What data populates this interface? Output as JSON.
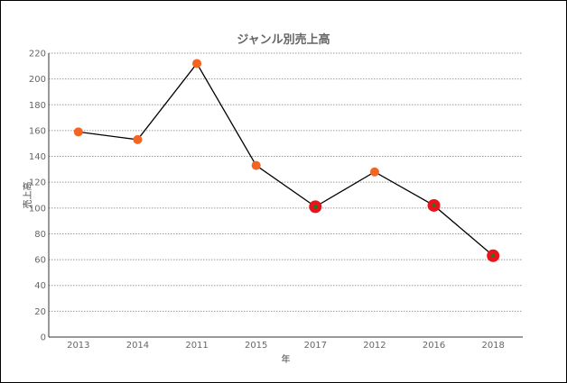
{
  "chart_data": {
    "type": "line",
    "title": "ジャンル別売上高",
    "xlabel": "年",
    "ylabel": "売上高",
    "categories": [
      "2013",
      "2014",
      "2011",
      "2015",
      "2017",
      "2012",
      "2016",
      "2018"
    ],
    "values": [
      159,
      153,
      212,
      133,
      101,
      128,
      102,
      63
    ],
    "highlighted": [
      false,
      false,
      false,
      false,
      true,
      false,
      true,
      true
    ],
    "ylim": [
      0,
      220
    ],
    "yticks": [
      0,
      20,
      40,
      60,
      80,
      100,
      120,
      140,
      160,
      180,
      200,
      220
    ],
    "grid": true,
    "colors": {
      "line": "#000000",
      "marker": "#f26522",
      "marker_highlight": "#e8141c",
      "marker_highlight_center": "#1e7a1e"
    }
  }
}
